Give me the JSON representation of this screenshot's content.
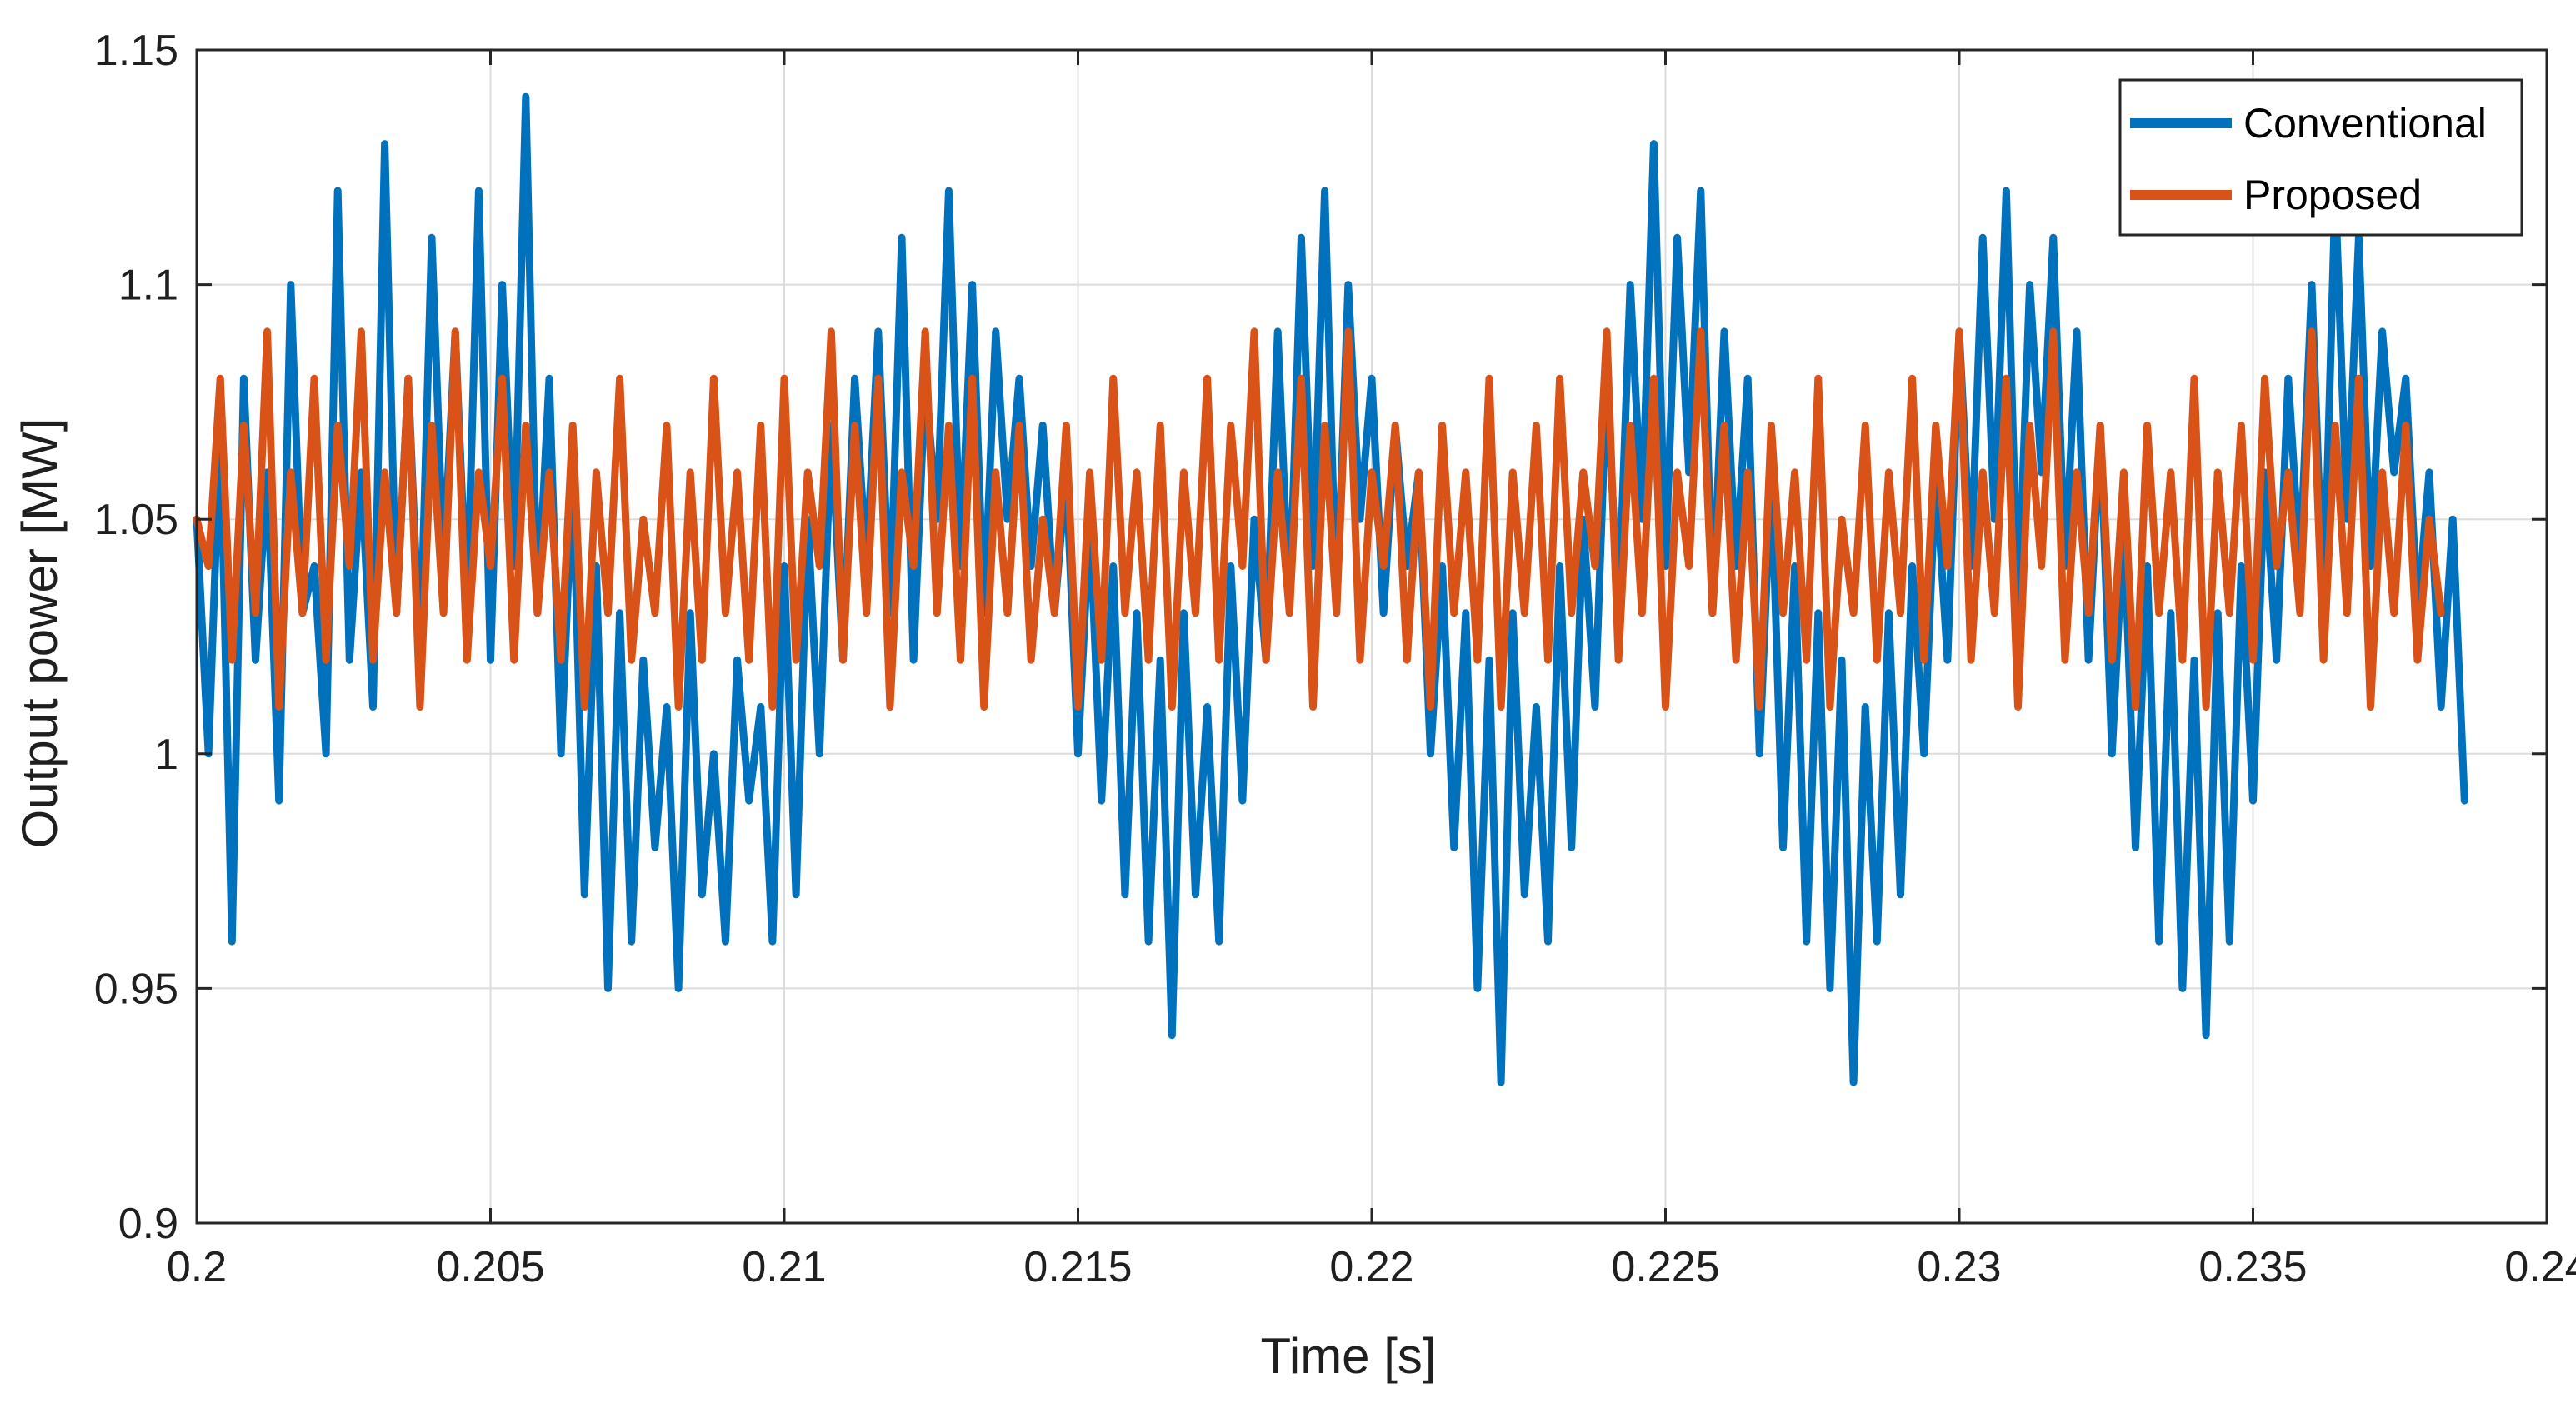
{
  "chart_data": {
    "type": "line",
    "title": "",
    "xlabel": "Time [s]",
    "ylabel": "Output power [MW]",
    "xlim": [
      0.2,
      0.24
    ],
    "ylim": [
      0.9,
      1.15
    ],
    "x_ticks": [
      "0.2",
      "0.205",
      "0.21",
      "0.215",
      "0.22",
      "0.225",
      "0.23",
      "0.235",
      "0.24"
    ],
    "y_ticks": [
      "0.9",
      "0.95",
      "1",
      "1.05",
      "1.1",
      "1.15"
    ],
    "grid": true,
    "legend_position": "top-right",
    "sample_step": 0.0002,
    "series": [
      {
        "name": "Conventional",
        "color": "#0072BD",
        "values": [
          1.05,
          1.0,
          1.07,
          0.96,
          1.08,
          1.02,
          1.06,
          0.99,
          1.1,
          1.03,
          1.04,
          1.0,
          1.12,
          1.02,
          1.06,
          1.01,
          1.13,
          1.03,
          1.08,
          1.02,
          1.11,
          1.04,
          1.09,
          1.03,
          1.12,
          1.02,
          1.1,
          1.04,
          1.14,
          1.03,
          1.08,
          1.0,
          1.06,
          0.97,
          1.04,
          0.95,
          1.03,
          0.96,
          1.02,
          0.98,
          1.01,
          0.95,
          1.03,
          0.97,
          1.0,
          0.96,
          1.02,
          0.99,
          1.01,
          0.96,
          1.04,
          0.97,
          1.05,
          1.0,
          1.07,
          1.02,
          1.08,
          1.04,
          1.09,
          1.03,
          1.11,
          1.02,
          1.08,
          1.05,
          1.12,
          1.04,
          1.1,
          1.03,
          1.09,
          1.05,
          1.08,
          1.04,
          1.07,
          1.03,
          1.06,
          1.0,
          1.05,
          0.99,
          1.04,
          0.97,
          1.03,
          0.96,
          1.02,
          0.94,
          1.03,
          0.97,
          1.01,
          0.96,
          1.04,
          0.99,
          1.05,
          1.02,
          1.09,
          1.03,
          1.11,
          1.04,
          1.12,
          1.03,
          1.1,
          1.05,
          1.08,
          1.03,
          1.07,
          1.04,
          1.06,
          1.0,
          1.04,
          0.98,
          1.03,
          0.95,
          1.02,
          0.93,
          1.03,
          0.97,
          1.01,
          0.96,
          1.04,
          0.98,
          1.05,
          1.01,
          1.08,
          1.03,
          1.1,
          1.05,
          1.13,
          1.04,
          1.11,
          1.06,
          1.12,
          1.03,
          1.09,
          1.04,
          1.08,
          1.0,
          1.06,
          0.98,
          1.04,
          0.96,
          1.03,
          0.95,
          1.02,
          0.93,
          1.01,
          0.96,
          1.03,
          0.97,
          1.04,
          1.0,
          1.06,
          1.02,
          1.09,
          1.04,
          1.11,
          1.05,
          1.12,
          1.03,
          1.1,
          1.06,
          1.11,
          1.04,
          1.09,
          1.02,
          1.07,
          1.0,
          1.05,
          0.98,
          1.04,
          0.96,
          1.03,
          0.95,
          1.02,
          0.94,
          1.03,
          0.96,
          1.04,
          0.99,
          1.06,
          1.02,
          1.08,
          1.04,
          1.1,
          1.03,
          1.12,
          1.05,
          1.11,
          1.04,
          1.09,
          1.06,
          1.08,
          1.03,
          1.06,
          1.01,
          1.05,
          0.99
        ]
      },
      {
        "name": "Proposed",
        "color": "#D95319",
        "values": [
          1.05,
          1.04,
          1.08,
          1.02,
          1.07,
          1.03,
          1.09,
          1.01,
          1.06,
          1.03,
          1.08,
          1.02,
          1.07,
          1.04,
          1.09,
          1.02,
          1.06,
          1.03,
          1.08,
          1.01,
          1.07,
          1.03,
          1.09,
          1.02,
          1.06,
          1.04,
          1.08,
          1.02,
          1.07,
          1.03,
          1.06,
          1.02,
          1.07,
          1.01,
          1.06,
          1.03,
          1.08,
          1.02,
          1.05,
          1.03,
          1.07,
          1.01,
          1.06,
          1.02,
          1.08,
          1.03,
          1.06,
          1.02,
          1.07,
          1.01,
          1.08,
          1.02,
          1.06,
          1.04,
          1.09,
          1.02,
          1.07,
          1.03,
          1.08,
          1.01,
          1.06,
          1.04,
          1.09,
          1.03,
          1.07,
          1.02,
          1.08,
          1.01,
          1.06,
          1.03,
          1.07,
          1.02,
          1.05,
          1.03,
          1.07,
          1.01,
          1.06,
          1.02,
          1.08,
          1.03,
          1.06,
          1.02,
          1.07,
          1.01,
          1.06,
          1.03,
          1.08,
          1.02,
          1.07,
          1.04,
          1.09,
          1.02,
          1.06,
          1.03,
          1.08,
          1.01,
          1.07,
          1.03,
          1.09,
          1.02,
          1.06,
          1.04,
          1.07,
          1.02,
          1.06,
          1.01,
          1.07,
          1.03,
          1.06,
          1.02,
          1.08,
          1.01,
          1.06,
          1.03,
          1.07,
          1.02,
          1.08,
          1.03,
          1.06,
          1.04,
          1.09,
          1.02,
          1.07,
          1.03,
          1.08,
          1.01,
          1.06,
          1.04,
          1.09,
          1.03,
          1.07,
          1.02,
          1.06,
          1.01,
          1.07,
          1.03,
          1.06,
          1.02,
          1.08,
          1.01,
          1.05,
          1.03,
          1.07,
          1.02,
          1.06,
          1.03,
          1.08,
          1.02,
          1.07,
          1.04,
          1.09,
          1.02,
          1.06,
          1.03,
          1.08,
          1.01,
          1.07,
          1.04,
          1.09,
          1.02,
          1.06,
          1.03,
          1.07,
          1.02,
          1.06,
          1.01,
          1.07,
          1.03,
          1.06,
          1.02,
          1.08,
          1.01,
          1.06,
          1.03,
          1.07,
          1.02,
          1.08,
          1.04,
          1.06,
          1.03,
          1.09,
          1.02,
          1.07,
          1.03,
          1.08,
          1.01,
          1.06,
          1.03,
          1.07,
          1.02,
          1.05,
          1.03
        ]
      }
    ]
  }
}
